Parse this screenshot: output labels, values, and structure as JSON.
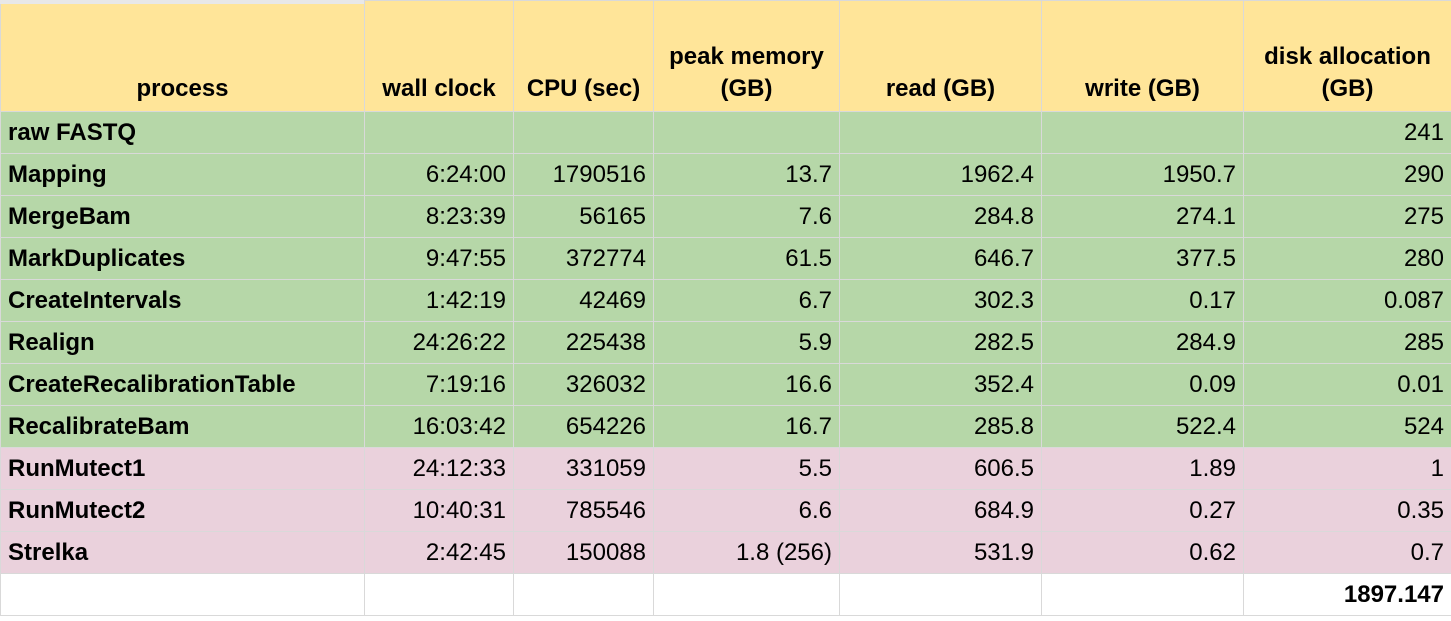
{
  "headers": {
    "process": "process",
    "wall_clock": "wall clock",
    "cpu": "CPU (sec)",
    "peak_memory": "peak memory (GB)",
    "read": "read (GB)",
    "write": "write (GB)",
    "disk_allocation": "disk allocation (GB)"
  },
  "colors": {
    "header_bg": "#ffe599",
    "green_row_bg": "#b6d7a8",
    "pink_row_bg": "#ead1dc",
    "grid_line": "#d9d9d9"
  },
  "rows": [
    {
      "process": "raw FASTQ",
      "wall_clock": "",
      "cpu": "",
      "peak_memory": "",
      "read": "",
      "write": "",
      "disk_allocation": "241",
      "group": "green"
    },
    {
      "process": "Mapping",
      "wall_clock": "6:24:00",
      "cpu": "1790516",
      "peak_memory": "13.7",
      "read": "1962.4",
      "write": "1950.7",
      "disk_allocation": "290",
      "group": "green"
    },
    {
      "process": "MergeBam",
      "wall_clock": "8:23:39",
      "cpu": "56165",
      "peak_memory": "7.6",
      "read": "284.8",
      "write": "274.1",
      "disk_allocation": "275",
      "group": "green"
    },
    {
      "process": "MarkDuplicates",
      "wall_clock": "9:47:55",
      "cpu": "372774",
      "peak_memory": "61.5",
      "read": "646.7",
      "write": "377.5",
      "disk_allocation": "280",
      "group": "green"
    },
    {
      "process": "CreateIntervals",
      "wall_clock": "1:42:19",
      "cpu": "42469",
      "peak_memory": "6.7",
      "read": "302.3",
      "write": "0.17",
      "disk_allocation": "0.087",
      "group": "green"
    },
    {
      "process": "Realign",
      "wall_clock": "24:26:22",
      "cpu": "225438",
      "peak_memory": "5.9",
      "read": "282.5",
      "write": "284.9",
      "disk_allocation": "285",
      "group": "green"
    },
    {
      "process": "CreateRecalibrationTable",
      "wall_clock": "7:19:16",
      "cpu": "326032",
      "peak_memory": "16.6",
      "read": "352.4",
      "write": "0.09",
      "disk_allocation": "0.01",
      "group": "green"
    },
    {
      "process": "RecalibrateBam",
      "wall_clock": "16:03:42",
      "cpu": "654226",
      "peak_memory": "16.7",
      "read": "285.8",
      "write": "522.4",
      "disk_allocation": "524",
      "group": "green"
    },
    {
      "process": "RunMutect1",
      "wall_clock": "24:12:33",
      "cpu": "331059",
      "peak_memory": "5.5",
      "read": "606.5",
      "write": "1.89",
      "disk_allocation": "1",
      "group": "pink"
    },
    {
      "process": "RunMutect2",
      "wall_clock": "10:40:31",
      "cpu": "785546",
      "peak_memory": "6.6",
      "read": "684.9",
      "write": "0.27",
      "disk_allocation": "0.35",
      "group": "pink"
    },
    {
      "process": "Strelka",
      "wall_clock": "2:42:45",
      "cpu": "150088",
      "peak_memory": "1.8 (256)",
      "read": "531.9",
      "write": "0.62",
      "disk_allocation": "0.7",
      "group": "pink"
    }
  ],
  "total": {
    "disk_allocation": "1897.147"
  }
}
